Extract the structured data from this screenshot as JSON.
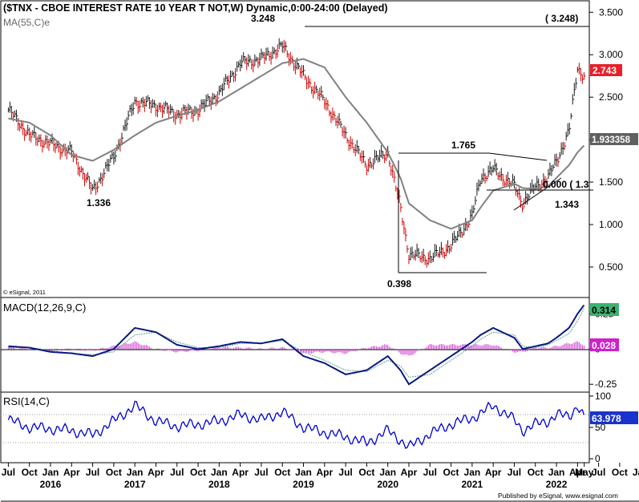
{
  "header": {
    "title": "($TNX - CBOE INTEREST RATE 10 YEAR T NOT,W) Dynamic,0:00-24:00 (Delayed)",
    "ma_label": "MA(55,C)e",
    "copyright": "© eSignal, 2011"
  },
  "footer": {
    "published": "Published by eSignal, www.esignal.com"
  },
  "colors": {
    "price_bar_up": "#1a1a1a",
    "price_bar_down": "#cc0000",
    "ma_line": "#808080",
    "macd_line": "#0a1a80",
    "signal_line": "#5f9ea0",
    "histogram": "#cc33cc",
    "rsi_line": "#0000cc",
    "badge_price": "#e8202a",
    "badge_ma": "#606060",
    "badge_macd": "#3cb371",
    "badge_hist": "#cc22cc",
    "badge_rsi": "#1a33cc"
  },
  "chart_data": [
    {
      "type": "line",
      "panel": "price",
      "ylim": [
        0.15,
        3.55
      ],
      "yticks": [
        "3.500",
        "3.000",
        "2.500",
        "2.000",
        "1.500",
        "1.000",
        "0.500"
      ],
      "x_tick_labels": [
        "Jul",
        "Oct",
        "Jan",
        "Apr",
        "Jul",
        "Oct",
        "Jan",
        "Apr",
        "Jul",
        "Oct",
        "Jan",
        "Apr",
        "Jul",
        "Oct",
        "Jan",
        "Apr",
        "Jul",
        "Oct",
        "Jan",
        "Apr",
        "Jul",
        "Oct",
        "Jan",
        "Apr",
        "Jul",
        "Oct",
        "Jan",
        "Apr",
        "Jul",
        "Oct",
        "Jan",
        "May"
      ],
      "year_labels": [
        "2016",
        "2017",
        "2018",
        "2019",
        "2020",
        "2021",
        "2022"
      ],
      "x": [
        2015.5,
        2015.75,
        2016.0,
        2016.25,
        2016.5,
        2016.75,
        2017.0,
        2017.25,
        2017.5,
        2017.75,
        2018.0,
        2018.25,
        2018.5,
        2018.75,
        2019.0,
        2019.25,
        2019.5,
        2019.75,
        2020.0,
        2020.15,
        2020.25,
        2020.5,
        2020.75,
        2021.0,
        2021.1,
        2021.25,
        2021.5,
        2021.6,
        2021.75,
        2021.9,
        2022.0,
        2022.15,
        2022.25,
        2022.33
      ],
      "series": [
        {
          "values": [
            2.35,
            2.05,
            1.95,
            1.85,
            1.4,
            1.8,
            2.45,
            2.4,
            2.3,
            2.35,
            2.55,
            2.9,
            2.95,
            3.1,
            2.75,
            2.45,
            2.05,
            1.7,
            1.85,
            1.2,
            0.65,
            0.6,
            0.75,
            1.1,
            1.55,
            1.65,
            1.45,
            1.25,
            1.45,
            1.55,
            1.75,
            2.1,
            2.85,
            2.743
          ]
        },
        {
          "name": "MA(55,C)e",
          "values": [
            2.25,
            2.2,
            2.05,
            1.82,
            1.75,
            1.88,
            2.05,
            2.2,
            2.28,
            2.35,
            2.45,
            2.6,
            2.75,
            2.9,
            2.95,
            2.85,
            2.5,
            2.2,
            1.85,
            1.55,
            1.25,
            1.05,
            0.95,
            1.05,
            1.2,
            1.4,
            1.48,
            1.43,
            1.42,
            1.45,
            1.55,
            1.7,
            1.85,
            1.933358
          ]
        }
      ],
      "annotations": [
        "3.248",
        "( 3.248)",
        "1.336",
        "1.765",
        "0.000 ( 1.3",
        "1.343",
        "0.398"
      ],
      "badges": [
        "2.743",
        "1.933358"
      ]
    },
    {
      "type": "line",
      "panel": "macd",
      "title": "MACD(12,26,9,C)",
      "ylim": [
        -0.3,
        0.36
      ],
      "yticks": [
        "0.25",
        "0",
        "-0.25"
      ],
      "x": [
        2015.5,
        2015.75,
        2016.0,
        2016.25,
        2016.5,
        2016.75,
        2017.0,
        2017.25,
        2017.5,
        2017.75,
        2018.0,
        2018.25,
        2018.5,
        2018.75,
        2019.0,
        2019.25,
        2019.5,
        2019.75,
        2020.0,
        2020.15,
        2020.25,
        2020.5,
        2020.75,
        2021.0,
        2021.1,
        2021.25,
        2021.5,
        2021.6,
        2021.75,
        2021.9,
        2022.0,
        2022.15,
        2022.25,
        2022.33
      ],
      "series": [
        {
          "name": "MACD",
          "values": [
            0.02,
            0.01,
            -0.02,
            -0.03,
            -0.05,
            0.0,
            0.15,
            0.12,
            0.03,
            0.0,
            0.02,
            0.05,
            0.04,
            0.07,
            -0.05,
            -0.1,
            -0.18,
            -0.15,
            -0.05,
            -0.15,
            -0.25,
            -0.15,
            -0.05,
            0.05,
            0.1,
            0.15,
            0.08,
            0.0,
            0.02,
            0.04,
            0.08,
            0.15,
            0.25,
            0.314
          ]
        },
        {
          "name": "Signal",
          "values": [
            0.01,
            0.01,
            -0.01,
            -0.03,
            -0.04,
            -0.02,
            0.1,
            0.12,
            0.05,
            0.01,
            0.01,
            0.04,
            0.04,
            0.06,
            -0.02,
            -0.08,
            -0.15,
            -0.16,
            -0.08,
            -0.12,
            -0.2,
            -0.18,
            -0.08,
            0.02,
            0.07,
            0.12,
            0.1,
            0.02,
            0.01,
            0.03,
            0.06,
            0.11,
            0.2,
            0.29
          ]
        },
        {
          "name": "Histogram",
          "values": [
            0.01,
            0.0,
            -0.01,
            0.0,
            -0.01,
            0.02,
            0.05,
            0.0,
            -0.02,
            -0.01,
            0.01,
            0.01,
            0.0,
            0.01,
            -0.03,
            -0.02,
            -0.03,
            0.01,
            0.03,
            -0.03,
            -0.05,
            0.03,
            0.03,
            0.03,
            0.03,
            0.03,
            -0.02,
            -0.02,
            0.01,
            0.01,
            0.02,
            0.04,
            0.05,
            0.028
          ]
        }
      ],
      "badges": [
        "0.314",
        "0.028"
      ]
    },
    {
      "type": "line",
      "panel": "rsi",
      "title": "RSI(14,C)",
      "ylim": [
        -5,
        105
      ],
      "yticks": [
        "100",
        "50",
        "0"
      ],
      "x": [
        2015.5,
        2015.75,
        2016.0,
        2016.25,
        2016.5,
        2016.75,
        2017.0,
        2017.25,
        2017.5,
        2017.75,
        2018.0,
        2018.25,
        2018.5,
        2018.75,
        2019.0,
        2019.25,
        2019.5,
        2019.75,
        2020.0,
        2020.15,
        2020.25,
        2020.5,
        2020.75,
        2021.0,
        2021.1,
        2021.25,
        2021.5,
        2021.6,
        2021.75,
        2021.9,
        2022.0,
        2022.15,
        2022.25,
        2022.33
      ],
      "series": [
        {
          "name": "RSI",
          "values": [
            62,
            50,
            48,
            45,
            38,
            60,
            85,
            60,
            52,
            55,
            60,
            70,
            62,
            75,
            50,
            42,
            35,
            25,
            45,
            30,
            18,
            40,
            55,
            65,
            72,
            85,
            62,
            45,
            55,
            60,
            70,
            68,
            85,
            63.978
          ]
        }
      ],
      "badges": [
        "63.978"
      ]
    }
  ]
}
